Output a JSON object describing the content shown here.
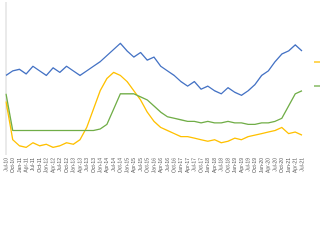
{
  "chart_data": {
    "type": "line",
    "categories": [
      "Jul-10",
      "Oct-10",
      "Jan-11",
      "Apr-11",
      "Jul-11",
      "Oct-11",
      "Jan-12",
      "Apr-12",
      "Jul-12",
      "Oct-12",
      "Jan-13",
      "Apr-13",
      "Jul-13",
      "Oct-13",
      "Jan-14",
      "Apr-14",
      "Jul-14",
      "Oct-14",
      "Jan-15",
      "Apr-15",
      "Jul-15",
      "Oct-15",
      "Jan-16",
      "Apr-16",
      "Jul-16",
      "Oct-16",
      "Jan-17",
      "Apr-17",
      "Jul-17",
      "Oct-17",
      "Jan-18",
      "Apr-18",
      "Jul-18",
      "Oct-18",
      "Jan-19",
      "Apr-19",
      "Jul-19",
      "Oct-19",
      "Jan-20",
      "Apr-20",
      "Jul-20",
      "Oct-20",
      "Jan-21",
      "Apr-21",
      "Jul-21"
    ],
    "series": [
      {
        "color": "#4472c4",
        "values": [
          52,
          55,
          56,
          53,
          58,
          55,
          52,
          57,
          54,
          58,
          55,
          52,
          55,
          58,
          61,
          65,
          69,
          73,
          68,
          64,
          67,
          62,
          64,
          58,
          55,
          52,
          48,
          45,
          48,
          43,
          45,
          42,
          40,
          44,
          41,
          39,
          42,
          46,
          52,
          55,
          61,
          66,
          68,
          72,
          68
        ]
      },
      {
        "color": "#ffc000",
        "values": [
          35,
          10,
          6,
          5,
          8,
          6,
          7,
          5,
          6,
          8,
          7,
          10,
          18,
          30,
          42,
          50,
          54,
          52,
          48,
          42,
          36,
          28,
          22,
          18,
          16,
          14,
          12,
          12,
          11,
          10,
          9,
          10,
          8,
          9,
          11,
          10,
          12,
          13,
          14,
          15,
          16,
          18,
          14,
          15,
          13
        ]
      },
      {
        "color": "#70ad47",
        "values": [
          40,
          16,
          16,
          16,
          16,
          16,
          16,
          16,
          16,
          16,
          16,
          16,
          16,
          16,
          17,
          20,
          30,
          40,
          40,
          40,
          38,
          36,
          32,
          28,
          25,
          24,
          23,
          22,
          22,
          21,
          22,
          21,
          21,
          22,
          21,
          21,
          20,
          20,
          21,
          21,
          22,
          24,
          32,
          40,
          42
        ]
      }
    ],
    "ylim": [
      0,
      100
    ],
    "grid": false
  }
}
